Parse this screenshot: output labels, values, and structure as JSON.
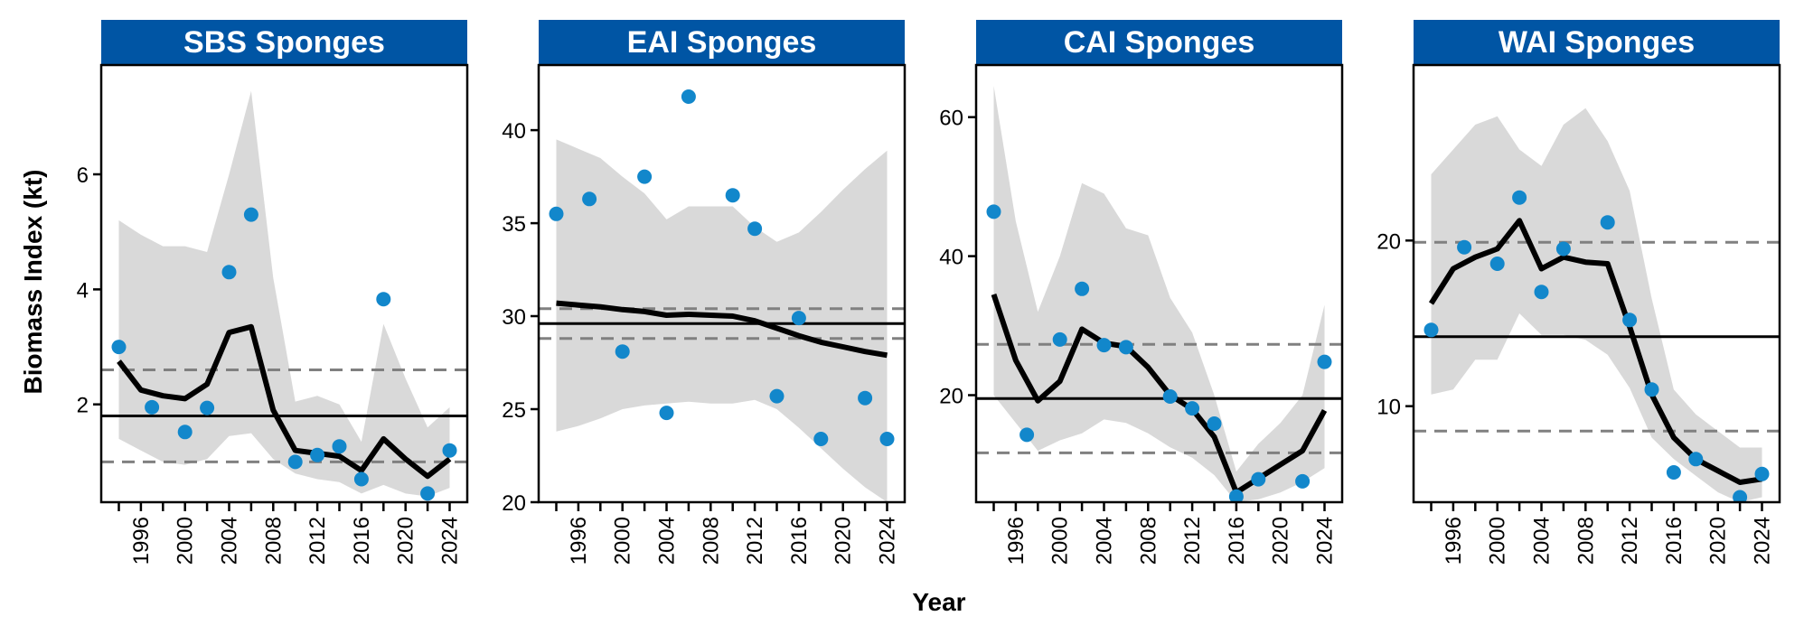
{
  "colors": {
    "strip": "#0055A4",
    "point": "#1287CB",
    "ribbon": "#D9D9D9",
    "trend": "#000000",
    "mean_line": "#000000",
    "limit_line": "#808080"
  },
  "chart_data": {
    "type": "line",
    "xlabel": "Year",
    "ylabel": "Biomass Index (kt)",
    "x_ticks": [
      "1996",
      "2000",
      "2004",
      "2008",
      "2012",
      "2016",
      "2020",
      "2024"
    ],
    "panels": [
      {
        "title": "SBS Sponges",
        "ylim": [
          0.3,
          7.9
        ],
        "y_ticks": [
          2,
          4,
          6
        ],
        "mean": 1.8,
        "lower_limit": 1.0,
        "upper_limit": 2.6,
        "points": {
          "x": [
            1994,
            1997,
            2000,
            2002,
            2004,
            2006,
            2010,
            2012,
            2014,
            2016,
            2018,
            2022,
            2024
          ],
          "y": [
            3.0,
            1.95,
            1.52,
            1.94,
            4.3,
            5.3,
            1.0,
            1.12,
            1.27,
            0.7,
            3.83,
            0.45,
            1.2
          ]
        },
        "trend": {
          "x": [
            1994,
            1996,
            1998,
            2000,
            2002,
            2004,
            2006,
            2008,
            2010,
            2012,
            2014,
            2016,
            2018,
            2020,
            2022,
            2024
          ],
          "y": [
            2.75,
            2.25,
            2.15,
            2.1,
            2.35,
            3.25,
            3.35,
            1.9,
            1.2,
            1.15,
            1.1,
            0.85,
            1.4,
            1.05,
            0.75,
            1.05
          ]
        },
        "ribbon_lower": [
          1.4,
          1.2,
          1.0,
          0.95,
          1.05,
          1.45,
          1.5,
          1.05,
          0.8,
          0.7,
          0.65,
          0.45,
          0.6,
          0.45,
          0.4,
          0.55
        ],
        "ribbon_upper": [
          5.2,
          4.95,
          4.75,
          4.75,
          4.65,
          6.0,
          7.45,
          4.2,
          2.05,
          2.15,
          2.0,
          1.35,
          3.4,
          2.45,
          1.6,
          1.95
        ]
      },
      {
        "title": "EAI Sponges",
        "ylim": [
          20,
          43.5
        ],
        "y_ticks": [
          20,
          25,
          30,
          35,
          40
        ],
        "mean": 29.6,
        "lower_limit": 28.8,
        "upper_limit": 30.4,
        "points": {
          "x": [
            1994,
            1997,
            2000,
            2002,
            2004,
            2006,
            2010,
            2012,
            2014,
            2016,
            2018,
            2022,
            2024
          ],
          "y": [
            35.5,
            36.3,
            28.1,
            37.5,
            24.8,
            41.8,
            36.5,
            34.7,
            25.7,
            29.9,
            23.4,
            25.6,
            23.4
          ]
        },
        "trend": {
          "x": [
            1994,
            1996,
            1998,
            2000,
            2002,
            2004,
            2006,
            2008,
            2010,
            2012,
            2014,
            2016,
            2018,
            2020,
            2022,
            2024
          ],
          "y": [
            30.7,
            30.6,
            30.5,
            30.35,
            30.25,
            30.05,
            30.1,
            30.05,
            30.0,
            29.75,
            29.35,
            28.95,
            28.6,
            28.35,
            28.1,
            27.9
          ]
        },
        "ribbon_lower": [
          23.8,
          24.1,
          24.5,
          25.0,
          25.2,
          25.3,
          25.4,
          25.3,
          25.3,
          25.5,
          25.0,
          24.0,
          22.9,
          21.8,
          20.8,
          20.0
        ],
        "ribbon_upper": [
          39.5,
          39.0,
          38.5,
          37.5,
          36.6,
          35.2,
          35.9,
          35.9,
          35.9,
          34.8,
          34.0,
          34.5,
          35.6,
          36.8,
          37.9,
          38.9
        ]
      },
      {
        "title": "CAI Sponges",
        "ylim": [
          4.6,
          67.5
        ],
        "y_ticks": [
          20,
          40,
          60
        ],
        "mean": 19.5,
        "lower_limit": 11.7,
        "upper_limit": 27.3,
        "points": {
          "x": [
            1994,
            1997,
            2000,
            2002,
            2004,
            2006,
            2010,
            2012,
            2014,
            2016,
            2018,
            2022,
            2024
          ],
          "y": [
            46.4,
            14.3,
            28.0,
            35.3,
            27.2,
            26.9,
            19.8,
            18.1,
            15.9,
            5.4,
            7.9,
            7.6,
            24.8
          ]
        },
        "trend": {
          "x": [
            1994,
            1996,
            1998,
            2000,
            2002,
            2004,
            2006,
            2008,
            2010,
            2012,
            2014,
            2016,
            2018,
            2020,
            2022,
            2024
          ],
          "y": [
            34.5,
            25.0,
            19.2,
            22.0,
            29.5,
            27.5,
            27.0,
            24.0,
            20.0,
            18.0,
            14.0,
            6.0,
            8.0,
            10.0,
            12.0,
            17.8
          ]
        },
        "ribbon_lower": [
          20.0,
          16.0,
          12.0,
          13.5,
          14.5,
          16.5,
          16.0,
          14.5,
          12.5,
          11.0,
          8.5,
          4.6,
          5.0,
          6.0,
          7.5,
          9.5
        ],
        "ribbon_upper": [
          64.5,
          45.0,
          32.0,
          40.0,
          50.5,
          49.0,
          44.0,
          43.0,
          34.0,
          29.0,
          20.0,
          9.0,
          13.0,
          16.0,
          20.0,
          33.0
        ]
      },
      {
        "title": "WAI Sponges",
        "ylim": [
          4.2,
          30.6
        ],
        "y_ticks": [
          10,
          20
        ],
        "mean": 14.2,
        "lower_limit": 8.5,
        "upper_limit": 19.9,
        "points": {
          "x": [
            1994,
            1997,
            2000,
            2002,
            2004,
            2006,
            2010,
            2012,
            2014,
            2016,
            2018,
            2022,
            2024
          ],
          "y": [
            14.6,
            19.6,
            18.6,
            22.6,
            16.9,
            19.5,
            21.1,
            15.2,
            11.0,
            6.0,
            6.8,
            4.5,
            5.9
          ]
        },
        "trend": {
          "x": [
            1994,
            1996,
            1998,
            2000,
            2002,
            2004,
            2006,
            2008,
            2010,
            2012,
            2014,
            2016,
            2018,
            2020,
            2022,
            2024
          ],
          "y": [
            16.2,
            18.3,
            19.0,
            19.5,
            21.2,
            18.3,
            19.0,
            18.7,
            18.6,
            14.8,
            10.7,
            8.1,
            6.8,
            6.1,
            5.4,
            5.6
          ]
        },
        "ribbon_lower": [
          10.7,
          11.0,
          12.8,
          12.8,
          15.6,
          14.3,
          14.3,
          14.0,
          13.1,
          11.1,
          8.1,
          6.8,
          5.8,
          4.8,
          4.2,
          4.5
        ],
        "ribbon_upper": [
          24.0,
          25.5,
          27.0,
          27.5,
          25.5,
          24.5,
          27.0,
          28.0,
          26.0,
          23.0,
          16.5,
          11.0,
          9.5,
          8.5,
          7.5,
          7.5
        ]
      }
    ]
  }
}
